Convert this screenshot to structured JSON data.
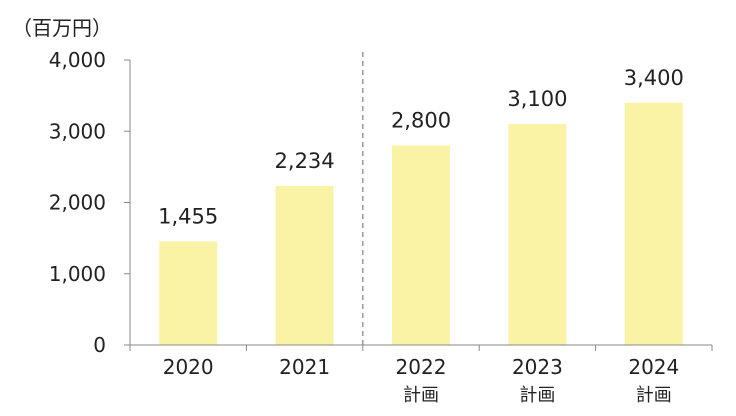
{
  "chart_data": {
    "type": "bar",
    "unit_label": "（百万円）",
    "categories": [
      "2020",
      "2021",
      "2022",
      "2023",
      "2024"
    ],
    "category_sublabels": [
      "",
      "",
      "計画",
      "計画",
      "計画"
    ],
    "values": [
      1455,
      2234,
      2800,
      3100,
      3400
    ],
    "value_labels": [
      "1,455",
      "2,234",
      "2,800",
      "3,100",
      "3,400"
    ],
    "yticks": [
      0,
      1000,
      2000,
      3000,
      4000
    ],
    "ytick_labels": [
      "0",
      "1,000",
      "2,000",
      "3,000",
      "4,000"
    ],
    "ylim": [
      0,
      4000
    ],
    "divider_between": [
      "2021",
      "2022"
    ],
    "grid": false,
    "legend": "none",
    "colors": {
      "bar": "#FAF3A6",
      "axis": "#888888",
      "divider": "#888888",
      "text": "#222222"
    }
  }
}
